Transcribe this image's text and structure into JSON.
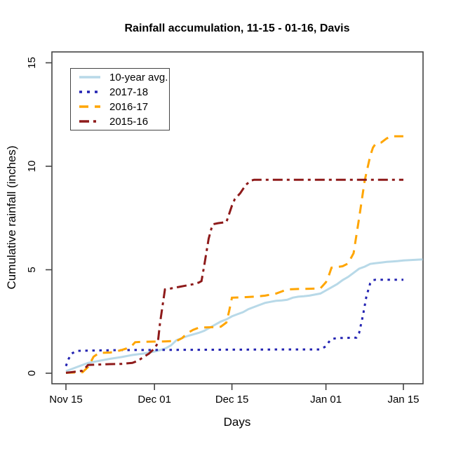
{
  "chart_data": {
    "type": "line",
    "title": "Rainfall accumulation, 11-15 - 01-16, Davis",
    "xlabel": "Days",
    "ylabel": "Cumulative rainfall (inches)",
    "grid": false,
    "legend_position": "top-left",
    "x_unit": "days since Nov 15",
    "xlim_days": [
      -2.6,
      64.6
    ],
    "ylim": [
      -0.5,
      15.5
    ],
    "x_ticks": [
      {
        "day": 0,
        "label": "Nov 15"
      },
      {
        "day": 16,
        "label": "Dec 01"
      },
      {
        "day": 30,
        "label": "Dec 15"
      },
      {
        "day": 47,
        "label": "Jan 01"
      },
      {
        "day": 61,
        "label": "Jan 15"
      }
    ],
    "y_ticks": [
      {
        "value": 0,
        "label": "0"
      },
      {
        "value": 5,
        "label": "5"
      },
      {
        "value": 10,
        "label": "10"
      },
      {
        "value": 15,
        "label": "15"
      }
    ],
    "series": [
      {
        "name": "10-year avg.",
        "color": "#b8d9e8",
        "style": "solid",
        "width": 3,
        "points": [
          [
            0,
            0.1
          ],
          [
            1,
            0.2
          ],
          [
            2,
            0.3
          ],
          [
            3,
            0.4
          ],
          [
            4,
            0.5
          ],
          [
            6,
            0.6
          ],
          [
            8,
            0.7
          ],
          [
            10,
            0.78
          ],
          [
            12,
            0.88
          ],
          [
            14,
            0.95
          ],
          [
            15,
            1.0
          ],
          [
            16,
            1.05
          ],
          [
            17,
            1.12
          ],
          [
            18,
            1.2
          ],
          [
            19,
            1.35
          ],
          [
            20,
            1.6
          ],
          [
            22,
            1.8
          ],
          [
            24,
            1.95
          ],
          [
            25,
            2.05
          ],
          [
            26,
            2.2
          ],
          [
            27,
            2.35
          ],
          [
            28,
            2.5
          ],
          [
            29,
            2.6
          ],
          [
            30,
            2.75
          ],
          [
            31,
            2.85
          ],
          [
            32,
            2.95
          ],
          [
            33,
            3.1
          ],
          [
            34,
            3.2
          ],
          [
            35,
            3.3
          ],
          [
            36,
            3.4
          ],
          [
            37,
            3.45
          ],
          [
            38,
            3.5
          ],
          [
            39,
            3.52
          ],
          [
            40,
            3.55
          ],
          [
            41,
            3.65
          ],
          [
            42,
            3.7
          ],
          [
            43,
            3.72
          ],
          [
            44,
            3.75
          ],
          [
            45,
            3.8
          ],
          [
            46,
            3.85
          ],
          [
            47,
            4.0
          ],
          [
            48,
            4.15
          ],
          [
            49,
            4.3
          ],
          [
            50,
            4.5
          ],
          [
            51,
            4.65
          ],
          [
            52,
            4.85
          ],
          [
            53,
            5.05
          ],
          [
            54,
            5.15
          ],
          [
            55,
            5.28
          ],
          [
            56,
            5.32
          ],
          [
            57,
            5.35
          ],
          [
            58,
            5.38
          ],
          [
            59,
            5.4
          ],
          [
            60,
            5.42
          ],
          [
            61,
            5.45
          ],
          [
            64.5,
            5.5
          ]
        ]
      },
      {
        "name": "2017-18",
        "color": "#2323b2",
        "style": "dotted",
        "width": 3,
        "points": [
          [
            0,
            0.35
          ],
          [
            0.5,
            0.7
          ],
          [
            1,
            0.95
          ],
          [
            2,
            1.08
          ],
          [
            5,
            1.1
          ],
          [
            10,
            1.12
          ],
          [
            20,
            1.13
          ],
          [
            30,
            1.14
          ],
          [
            40,
            1.15
          ],
          [
            46,
            1.15
          ],
          [
            47,
            1.3
          ],
          [
            47.5,
            1.5
          ],
          [
            48,
            1.65
          ],
          [
            49,
            1.7
          ],
          [
            52.5,
            1.72
          ],
          [
            53,
            1.95
          ],
          [
            53.7,
            2.8
          ],
          [
            54.3,
            3.7
          ],
          [
            55,
            4.35
          ],
          [
            55.5,
            4.5
          ],
          [
            56,
            4.52
          ],
          [
            61,
            4.52
          ]
        ]
      },
      {
        "name": "2016-17",
        "color": "#ffa500",
        "style": "dashed",
        "width": 3,
        "points": [
          [
            0,
            0.02
          ],
          [
            3,
            0.05
          ],
          [
            4,
            0.3
          ],
          [
            4.5,
            0.55
          ],
          [
            5,
            0.8
          ],
          [
            6,
            0.98
          ],
          [
            8,
            1.0
          ],
          [
            9,
            1.05
          ],
          [
            10,
            1.12
          ],
          [
            11,
            1.2
          ],
          [
            12,
            1.35
          ],
          [
            12.5,
            1.5
          ],
          [
            14,
            1.52
          ],
          [
            16,
            1.53
          ],
          [
            18,
            1.54
          ],
          [
            20,
            1.56
          ],
          [
            21,
            1.7
          ],
          [
            22,
            1.95
          ],
          [
            23,
            2.1
          ],
          [
            24,
            2.2
          ],
          [
            26,
            2.22
          ],
          [
            28,
            2.25
          ],
          [
            29,
            2.45
          ],
          [
            29.5,
            3.0
          ],
          [
            30,
            3.65
          ],
          [
            32,
            3.67
          ],
          [
            34,
            3.7
          ],
          [
            36,
            3.75
          ],
          [
            37,
            3.8
          ],
          [
            38,
            3.85
          ],
          [
            39,
            3.95
          ],
          [
            40,
            4.05
          ],
          [
            42,
            4.07
          ],
          [
            44,
            4.08
          ],
          [
            46,
            4.1
          ],
          [
            47,
            4.4
          ],
          [
            47.5,
            4.7
          ],
          [
            48,
            5.1
          ],
          [
            50,
            5.17
          ],
          [
            51,
            5.3
          ],
          [
            52,
            5.8
          ],
          [
            53,
            7.5
          ],
          [
            54,
            9.3
          ],
          [
            55,
            10.5
          ],
          [
            55.5,
            10.9
          ],
          [
            56,
            11.1
          ],
          [
            57,
            11.15
          ],
          [
            58,
            11.35
          ],
          [
            59,
            11.45
          ],
          [
            61,
            11.45
          ]
        ]
      },
      {
        "name": "2015-16",
        "color": "#8e1a1a",
        "style": "dashdot",
        "width": 3,
        "points": [
          [
            0,
            0.02
          ],
          [
            1,
            0.05
          ],
          [
            3,
            0.12
          ],
          [
            3.5,
            0.25
          ],
          [
            4,
            0.4
          ],
          [
            6,
            0.42
          ],
          [
            8,
            0.44
          ],
          [
            10,
            0.45
          ],
          [
            12,
            0.5
          ],
          [
            13,
            0.6
          ],
          [
            14,
            0.78
          ],
          [
            15,
            0.95
          ],
          [
            16,
            1.2
          ],
          [
            16.6,
            1.45
          ],
          [
            17,
            2.4
          ],
          [
            17.9,
            4.05
          ],
          [
            19,
            4.1
          ],
          [
            20,
            4.15
          ],
          [
            22,
            4.25
          ],
          [
            23,
            4.3
          ],
          [
            24,
            4.38
          ],
          [
            24.5,
            4.45
          ],
          [
            25,
            5.2
          ],
          [
            25.8,
            6.5
          ],
          [
            26.3,
            7.0
          ],
          [
            26.6,
            7.2
          ],
          [
            27.5,
            7.25
          ],
          [
            29,
            7.3
          ],
          [
            30,
            8.1
          ],
          [
            30.5,
            8.4
          ],
          [
            31.5,
            8.7
          ],
          [
            32.5,
            9.1
          ],
          [
            33.4,
            9.3
          ],
          [
            34,
            9.35
          ],
          [
            45,
            9.35
          ],
          [
            61,
            9.35
          ]
        ]
      }
    ]
  },
  "layout_note": ""
}
